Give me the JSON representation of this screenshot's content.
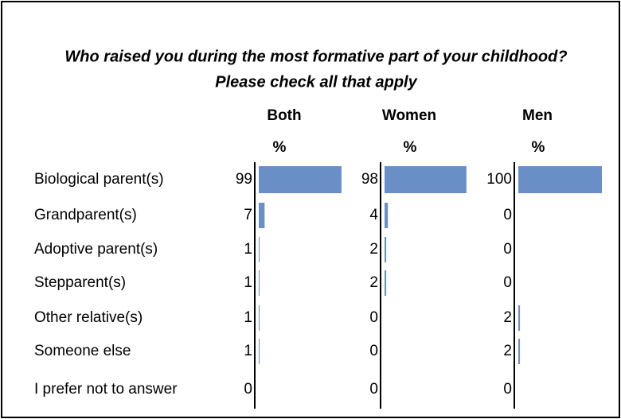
{
  "chart_data": {
    "type": "bar",
    "title": "Who raised you during the most formative part of your childhood?",
    "subtitle": "Please check all that apply",
    "unit": "%",
    "categories": [
      "Biological parent(s)",
      "Grandparent(s)",
      "Adoptive parent(s)",
      "Stepparent(s)",
      "Other relative(s)",
      "Someone else",
      "I prefer not to answer"
    ],
    "series": [
      {
        "name": "Both",
        "color": "#6a8fc7",
        "values": [
          99,
          7,
          1,
          1,
          1,
          1,
          0
        ]
      },
      {
        "name": "Women",
        "color": "#6a8fc7",
        "values": [
          98,
          4,
          2,
          2,
          0,
          0,
          0
        ]
      },
      {
        "name": "Men",
        "color": "#6a8fc7",
        "values": [
          100,
          0,
          0,
          0,
          2,
          2,
          0
        ]
      }
    ],
    "xlim": [
      0,
      100
    ]
  }
}
